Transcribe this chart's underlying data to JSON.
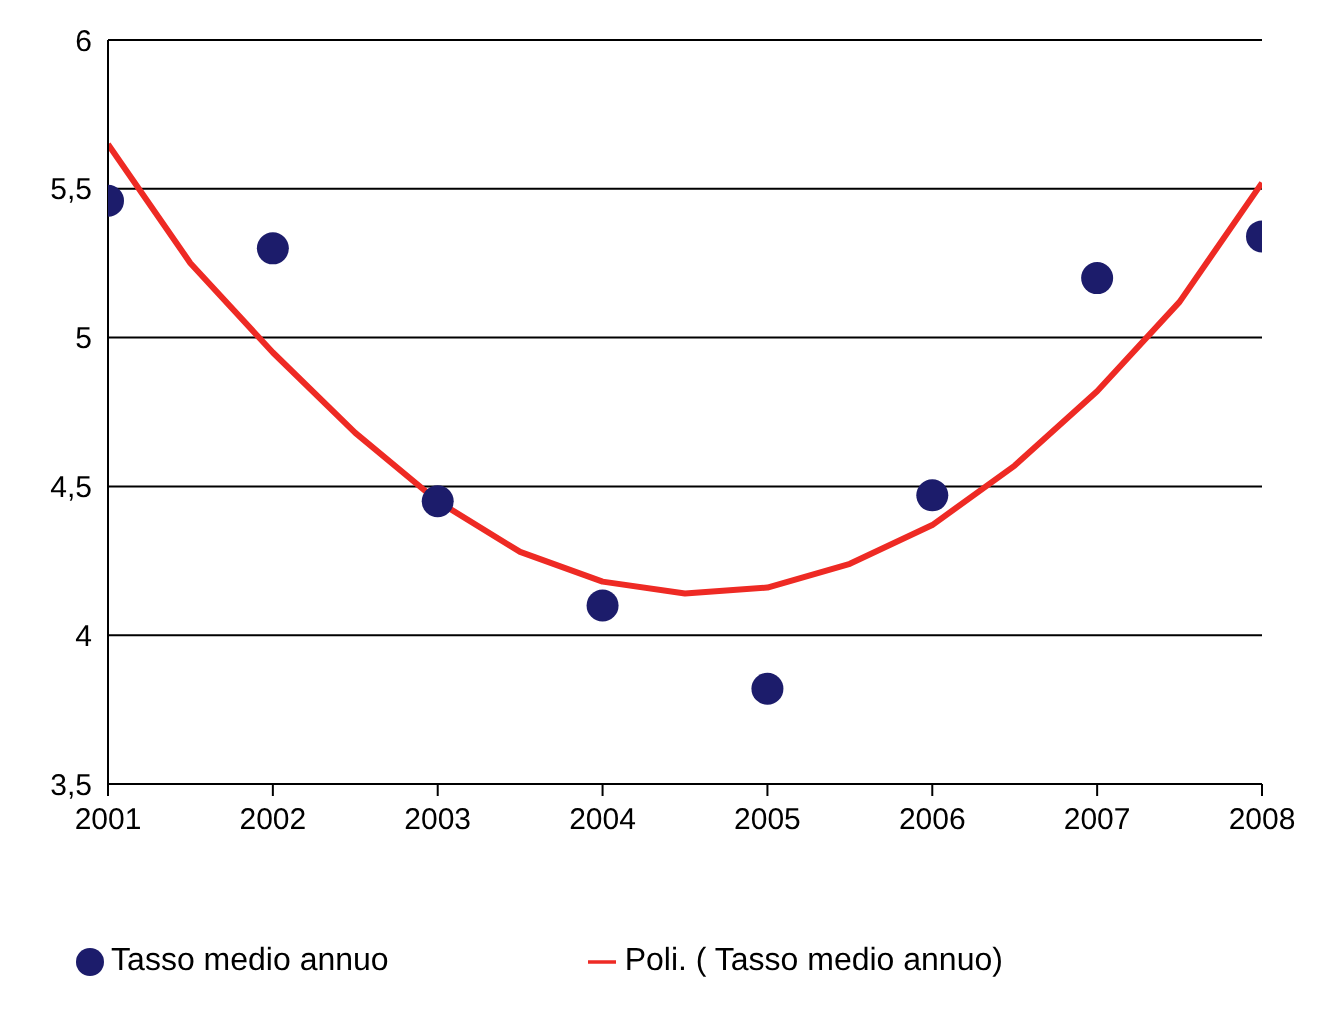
{
  "chart_data": {
    "type": "scatter",
    "x": [
      2001,
      2002,
      2003,
      2004,
      2005,
      2006,
      2007,
      2008
    ],
    "series": [
      {
        "name": "Tasso medio annuo",
        "color": "#1c1c6b",
        "marker": "circle",
        "values": [
          5.46,
          5.3,
          4.45,
          4.1,
          3.82,
          4.47,
          5.2,
          5.34
        ]
      },
      {
        "name": "Poli. ( Tasso medio annuo)",
        "type": "line",
        "color": "#ee2a24",
        "marker": "none",
        "line_style": "solid",
        "x": [
          2001,
          2001.5,
          2002,
          2002.5,
          2003,
          2003.5,
          2004,
          2004.5,
          2005,
          2005.5,
          2006,
          2006.5,
          2007,
          2007.5,
          2008
        ],
        "values": [
          5.65,
          5.25,
          4.95,
          4.68,
          4.45,
          4.28,
          4.18,
          4.14,
          4.16,
          4.24,
          4.37,
          4.57,
          4.82,
          5.12,
          5.52
        ]
      }
    ],
    "xlim": [
      2001,
      2008
    ],
    "xticks": [
      2001,
      2002,
      2003,
      2004,
      2005,
      2006,
      2007,
      2008
    ],
    "ylim": [
      3.5,
      6
    ],
    "yticks": [
      {
        "value": 3.5,
        "label": "3,5"
      },
      4,
      {
        "value": 4.5,
        "label": "4,5"
      },
      5,
      {
        "value": 5.5,
        "label": "5,5"
      },
      6
    ],
    "grid": "y",
    "legend": "bottom"
  }
}
